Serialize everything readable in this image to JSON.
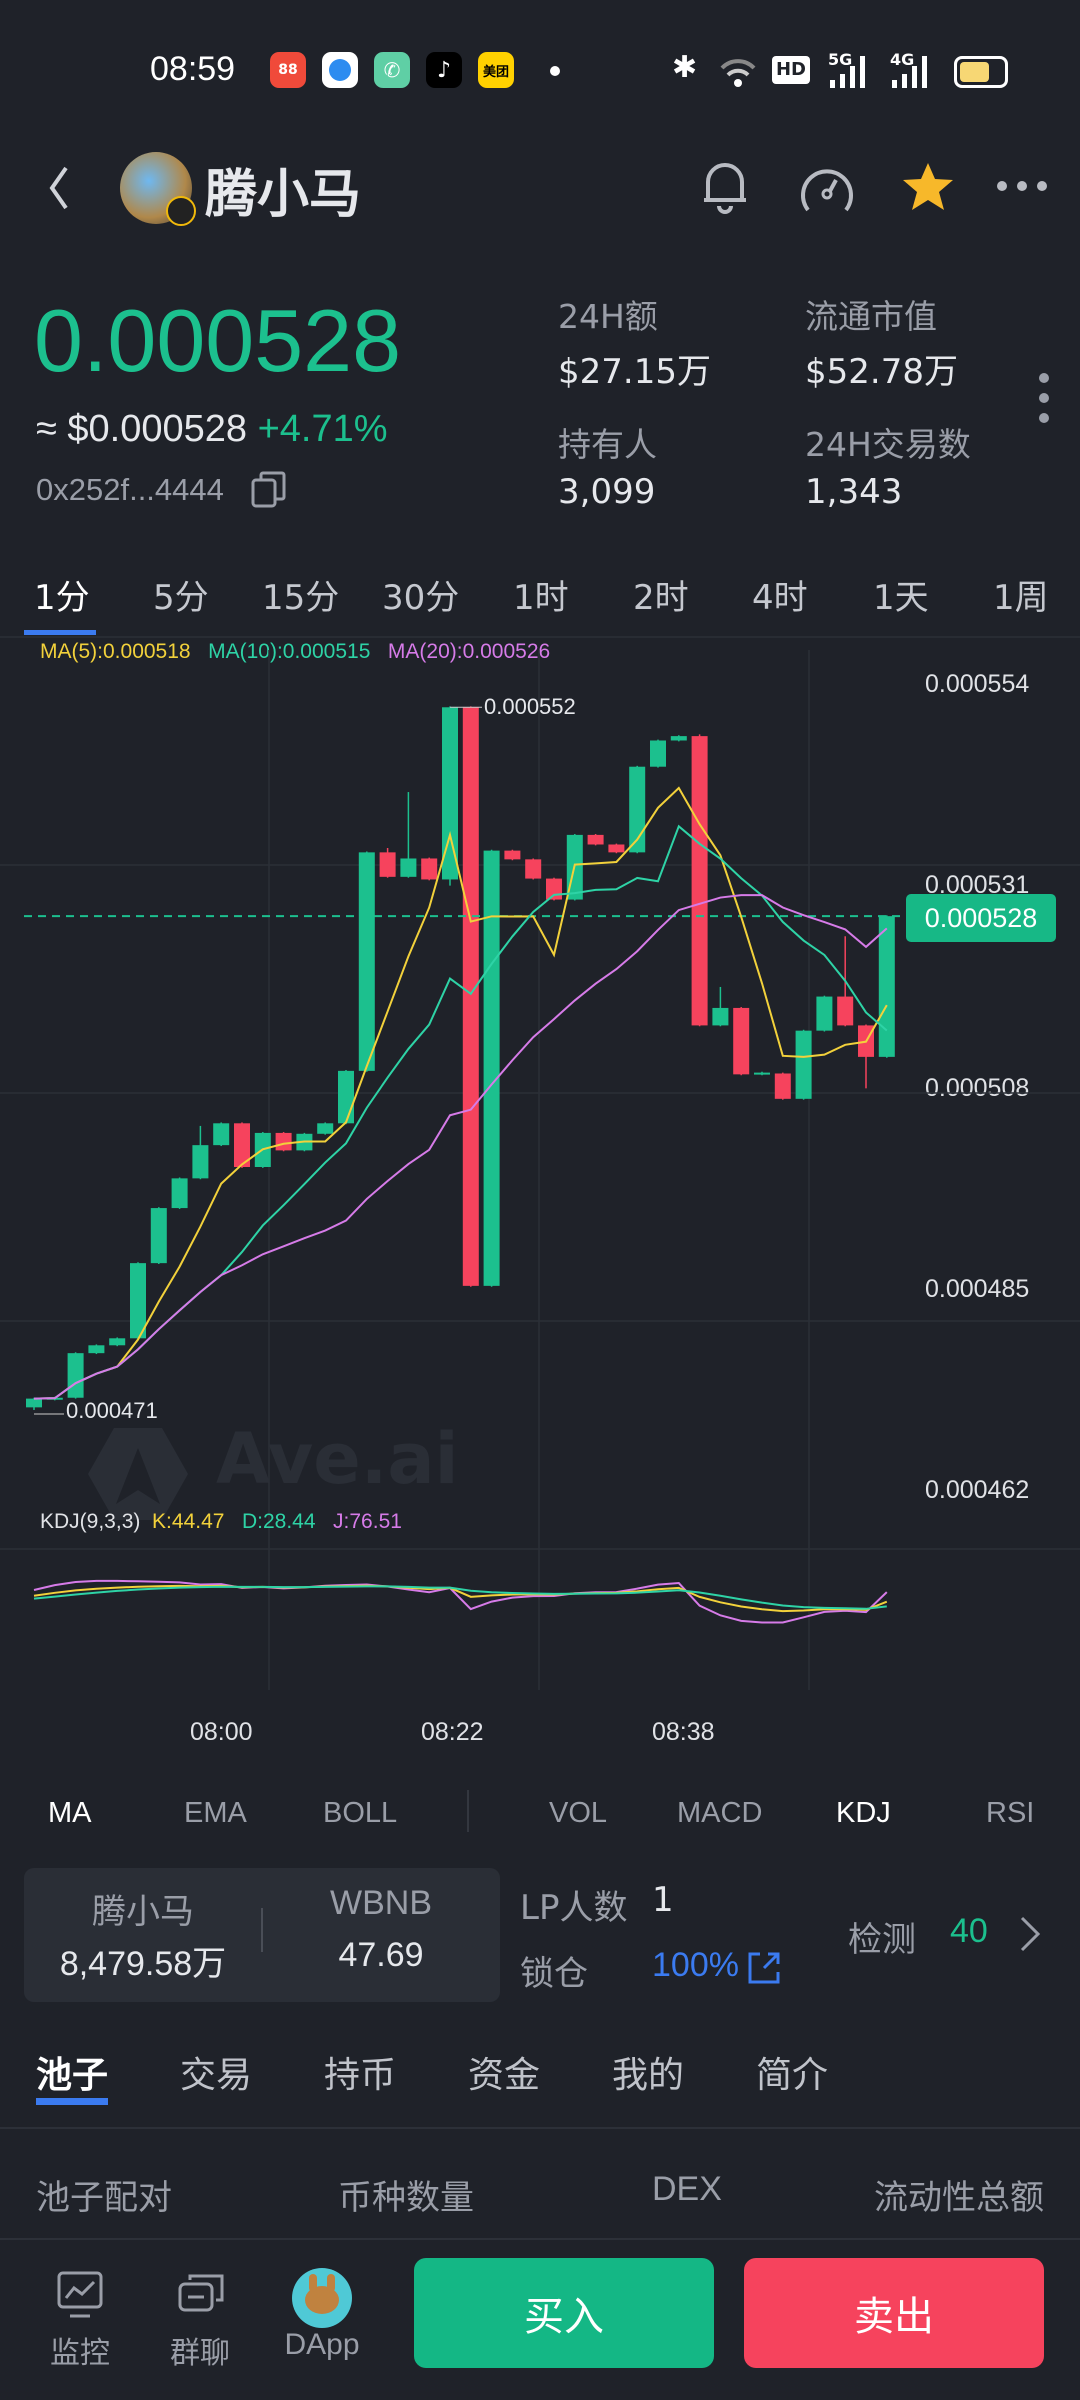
{
  "status_bar": {
    "time": "08:59",
    "network1": "5G",
    "network2": "4G",
    "hd": "HD",
    "app_icons": [
      "拼多多",
      "browser",
      "phone",
      "tiktok",
      "美团"
    ],
    "battery_level": 0.6
  },
  "header": {
    "title": "腾小马",
    "icons": [
      "back-icon",
      "bell-icon",
      "gauge-icon",
      "star-icon",
      "more-icon"
    ]
  },
  "price": {
    "main": "0.000528",
    "usd": "≈ $0.000528",
    "change": "+4.71%",
    "address": "0x252f...4444"
  },
  "stats": [
    {
      "label": "24H额",
      "value": "$27.15万"
    },
    {
      "label": "流通市值",
      "value": "$52.78万"
    },
    {
      "label": "持有人",
      "value": "3,099"
    },
    {
      "label": "24H交易数",
      "value": "1,343"
    }
  ],
  "timeframes": [
    "1分",
    "5分",
    "15分",
    "30分",
    "1时",
    "2时",
    "4时",
    "1天",
    "1周"
  ],
  "chart_legend": {
    "ma5": "MA(5):0.000518",
    "ma10": "MA(10):0.000515",
    "ma20": "MA(20):0.000526"
  },
  "kdj_legend": {
    "title": "KDJ(9,3,3)",
    "k": "K:44.47",
    "d": "D:28.44",
    "j": "J:76.51"
  },
  "watermark": "Ave.ai",
  "colors": {
    "up": "#1cc08e",
    "down": "#f6435d",
    "ma5": "#f2d13b",
    "ma10": "#2ed3a6",
    "ma20": "#d67be8",
    "accent": "#3b7bf0",
    "bg": "#1f2229"
  },
  "chart_data": {
    "type": "candlestick",
    "unit": "0.000001",
    "y_ticks": [
      "0.000554",
      "0.000531",
      "0.000508",
      "0.000485",
      "0.000462"
    ],
    "y_tick_values": [
      554,
      531,
      508,
      485,
      462
    ],
    "x_ticks": [
      "08:00",
      "08:22",
      "08:38"
    ],
    "current_price_label": "0.000528",
    "current_price": 527.7,
    "high_label": "0.000552",
    "low_label": "0.000471",
    "grid": true,
    "candles": [
      {
        "o": 471.5,
        "c": 472.5,
        "h": 472.6,
        "l": 471.2
      },
      {
        "o": 472.4,
        "c": 472.6,
        "h": 472.7,
        "l": 472.3
      },
      {
        "o": 472.6,
        "c": 477.7,
        "h": 477.8,
        "l": 472.5
      },
      {
        "o": 477.7,
        "c": 478.6,
        "h": 478.7,
        "l": 477.6
      },
      {
        "o": 478.6,
        "c": 479.4,
        "h": 479.5,
        "l": 478.5
      },
      {
        "o": 479.4,
        "c": 488.0,
        "h": 488.1,
        "l": 479.3
      },
      {
        "o": 488.0,
        "c": 494.3,
        "h": 494.4,
        "l": 487.9
      },
      {
        "o": 494.3,
        "c": 497.7,
        "h": 497.8,
        "l": 494.2
      },
      {
        "o": 497.7,
        "c": 501.5,
        "h": 503.7,
        "l": 497.6
      },
      {
        "o": 501.5,
        "c": 504.0,
        "h": 504.1,
        "l": 501.4
      },
      {
        "o": 504.0,
        "c": 499.0,
        "h": 504.1,
        "l": 498.9
      },
      {
        "o": 499.0,
        "c": 502.9,
        "h": 503.0,
        "l": 498.9
      },
      {
        "o": 502.9,
        "c": 500.9,
        "h": 503.0,
        "l": 500.8
      },
      {
        "o": 500.9,
        "c": 502.8,
        "h": 502.9,
        "l": 500.8
      },
      {
        "o": 502.8,
        "c": 504.0,
        "h": 504.1,
        "l": 502.7
      },
      {
        "o": 504.0,
        "c": 510.0,
        "h": 510.1,
        "l": 503.9
      },
      {
        "o": 510.0,
        "c": 535.0,
        "h": 535.1,
        "l": 509.9
      },
      {
        "o": 535.0,
        "c": 532.2,
        "h": 535.5,
        "l": 532.1
      },
      {
        "o": 532.2,
        "c": 534.3,
        "h": 541.9,
        "l": 532.1
      },
      {
        "o": 534.3,
        "c": 531.9,
        "h": 534.4,
        "l": 531.8
      },
      {
        "o": 531.9,
        "c": 551.6,
        "h": 551.7,
        "l": 531.2
      },
      {
        "o": 551.6,
        "c": 485.4,
        "h": 551.7,
        "l": 485.3
      },
      {
        "o": 485.4,
        "c": 535.2,
        "h": 535.3,
        "l": 485.3
      },
      {
        "o": 535.2,
        "c": 534.2,
        "h": 535.3,
        "l": 534.1
      },
      {
        "o": 534.2,
        "c": 532.0,
        "h": 534.3,
        "l": 531.9
      },
      {
        "o": 532.0,
        "c": 529.6,
        "h": 532.1,
        "l": 529.5
      },
      {
        "o": 529.6,
        "c": 537.0,
        "h": 537.1,
        "l": 529.5
      },
      {
        "o": 537.0,
        "c": 535.9,
        "h": 537.1,
        "l": 535.8
      },
      {
        "o": 535.9,
        "c": 535.0,
        "h": 536.0,
        "l": 534.9
      },
      {
        "o": 535.0,
        "c": 544.8,
        "h": 544.9,
        "l": 534.9
      },
      {
        "o": 544.8,
        "c": 547.8,
        "h": 547.9,
        "l": 544.7
      },
      {
        "o": 547.8,
        "c": 548.3,
        "h": 548.4,
        "l": 547.7
      },
      {
        "o": 548.3,
        "c": 515.2,
        "h": 548.5,
        "l": 515.1
      },
      {
        "o": 515.2,
        "c": 517.2,
        "h": 519.6,
        "l": 515.1
      },
      {
        "o": 517.2,
        "c": 509.6,
        "h": 517.3,
        "l": 509.5
      },
      {
        "o": 509.6,
        "c": 509.8,
        "h": 509.9,
        "l": 509.5
      },
      {
        "o": 509.7,
        "c": 506.8,
        "h": 509.8,
        "l": 506.7
      },
      {
        "o": 506.8,
        "c": 514.6,
        "h": 514.7,
        "l": 506.7
      },
      {
        "o": 514.6,
        "c": 518.5,
        "h": 518.6,
        "l": 514.5
      },
      {
        "o": 518.5,
        "c": 515.2,
        "h": 525.4,
        "l": 515.1
      },
      {
        "o": 515.2,
        "c": 511.6,
        "h": 515.3,
        "l": 508.0
      },
      {
        "o": 511.6,
        "c": 527.7,
        "h": 527.8,
        "l": 511.5
      }
    ]
  },
  "indicator_tabs": {
    "main": [
      "MA",
      "EMA",
      "BOLL"
    ],
    "sub": [
      "VOL",
      "MACD",
      "KDJ",
      "RSI"
    ],
    "active_main": "MA",
    "active_sub": "KDJ"
  },
  "pool": {
    "token_a_name": "腾小马",
    "token_a_amount": "8,479.58万",
    "token_b_name": "WBNB",
    "token_b_amount": "47.69",
    "lp_label": "LP人数",
    "lp_value": "1",
    "lock_label": "锁仓",
    "lock_value": "100%",
    "check_label": "检测",
    "check_value": "40"
  },
  "tabs": [
    "池子",
    "交易",
    "持币",
    "资金",
    "我的",
    "简介"
  ],
  "table_headers": [
    "池子配对",
    "币种数量",
    "DEX",
    "流动性总额"
  ],
  "bottom_nav": [
    {
      "label": "监控"
    },
    {
      "label": "群聊"
    },
    {
      "label": "DApp"
    }
  ],
  "actions": {
    "buy": "买入",
    "sell": "卖出"
  }
}
